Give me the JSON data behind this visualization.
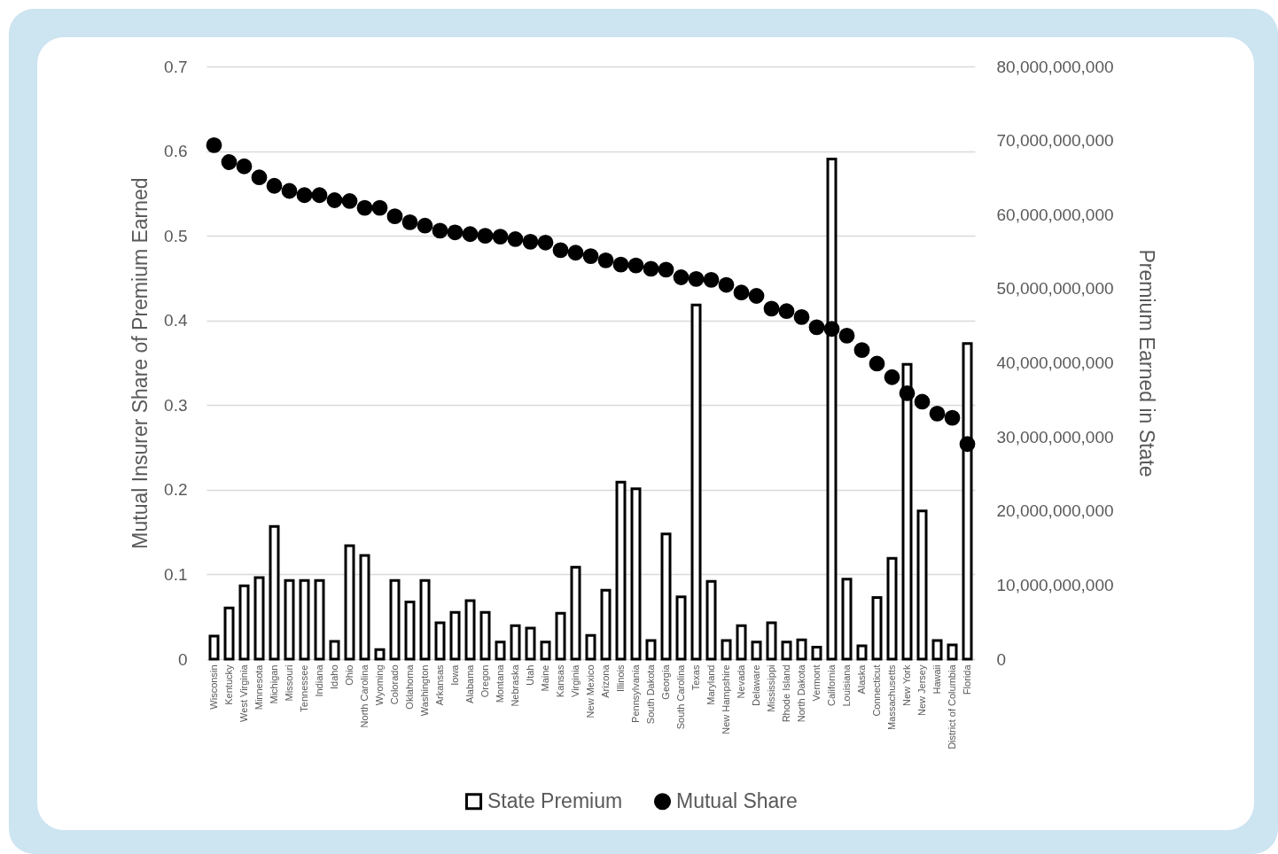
{
  "chart_data": {
    "type": "bar",
    "ylabel": "Mutual Insurer Share of Premium Earned",
    "y2label": "Premium Earned in State",
    "categories": [
      "Wisconsin",
      "Kentucky",
      "West Virginia",
      "Minnesota",
      "Michigan",
      "Missouri",
      "Tennessee",
      "Indiana",
      "Idaho",
      "Ohio",
      "North Carolina",
      "Wyoming",
      "Colorado",
      "Oklahoma",
      "Washington",
      "Arkansas",
      "Iowa",
      "Alabama",
      "Oregon",
      "Montana",
      "Nebraska",
      "Utah",
      "Maine",
      "Kansas",
      "Virginia",
      "New Mexico",
      "Arizona",
      "Illinois",
      "Pennsylvania",
      "South Dakota",
      "Georgia",
      "South Carolina",
      "Texas",
      "Maryland",
      "New Hampshire",
      "Nevada",
      "Delaware",
      "Mississippi",
      "Rhode Island",
      "North Dakota",
      "Vermont",
      "California",
      "Louisiana",
      "Alaska",
      "Connecticut",
      "Massachusetts",
      "New York",
      "New Jersey",
      "Hawaii",
      "District of Columbia",
      "Florida"
    ],
    "series": [
      {
        "name": "State Premium",
        "axis": "y2",
        "color": "#000000",
        "values": [
          3100000000,
          6900000000,
          9900000000,
          11000000000,
          17900000000,
          10600000000,
          10600000000,
          10600000000,
          2400000000,
          15300000000,
          14000000000,
          1300000000,
          10600000000,
          7700000000,
          10600000000,
          4900000000,
          6300000000,
          7900000000,
          6300000000,
          2300000000,
          4500000000,
          4200000000,
          2300000000,
          6200000000,
          12400000000,
          3200000000,
          9300000000,
          23900000000,
          23000000000,
          2500000000,
          16900000000,
          8400000000,
          47800000000,
          10500000000,
          2500000000,
          4500000000,
          2300000000,
          4900000000,
          2300000000,
          2600000000,
          1600000000,
          67500000000,
          10800000000,
          1800000000,
          8300000000,
          13600000000,
          39800000000,
          20000000000,
          2500000000,
          1900000000,
          42600000000
        ]
      },
      {
        "name": "Mutual Share",
        "type": "scatter",
        "color": "#000000",
        "values": [
          0.607,
          0.587,
          0.582,
          0.569,
          0.559,
          0.553,
          0.548,
          0.548,
          0.542,
          0.541,
          0.533,
          0.533,
          0.523,
          0.516,
          0.512,
          0.506,
          0.504,
          0.502,
          0.5,
          0.499,
          0.496,
          0.493,
          0.492,
          0.483,
          0.48,
          0.476,
          0.471,
          0.466,
          0.465,
          0.461,
          0.46,
          0.451,
          0.449,
          0.448,
          0.442,
          0.433,
          0.429,
          0.414,
          0.411,
          0.404,
          0.392,
          0.39,
          0.382,
          0.365,
          0.349,
          0.333,
          0.314,
          0.304,
          0.29,
          0.285,
          0.254
        ]
      }
    ],
    "ylim": [
      0,
      0.7
    ],
    "yticks": [
      0,
      0.1,
      0.2,
      0.3,
      0.4,
      0.5,
      0.6,
      0.7
    ],
    "y2lim": [
      0,
      80000000000
    ],
    "y2ticks": [
      0,
      {
        "value": 10000000000,
        "label": "10,000,000,000"
      },
      {
        "value": 20000000000,
        "label": "20,000,000,000"
      },
      {
        "value": 30000000000,
        "label": "30,000,000,000"
      },
      {
        "value": 40000000000,
        "label": "40,000,000,000"
      },
      {
        "value": 50000000000,
        "label": "50,000,000,000"
      },
      {
        "value": 60000000000,
        "label": "60,000,000,000"
      },
      {
        "value": 70000000000,
        "label": "70,000,000,000"
      },
      {
        "value": 80000000000,
        "label": "80,000,000,000"
      }
    ],
    "grid": "y",
    "legend": "bottom",
    "marker": "circle"
  }
}
